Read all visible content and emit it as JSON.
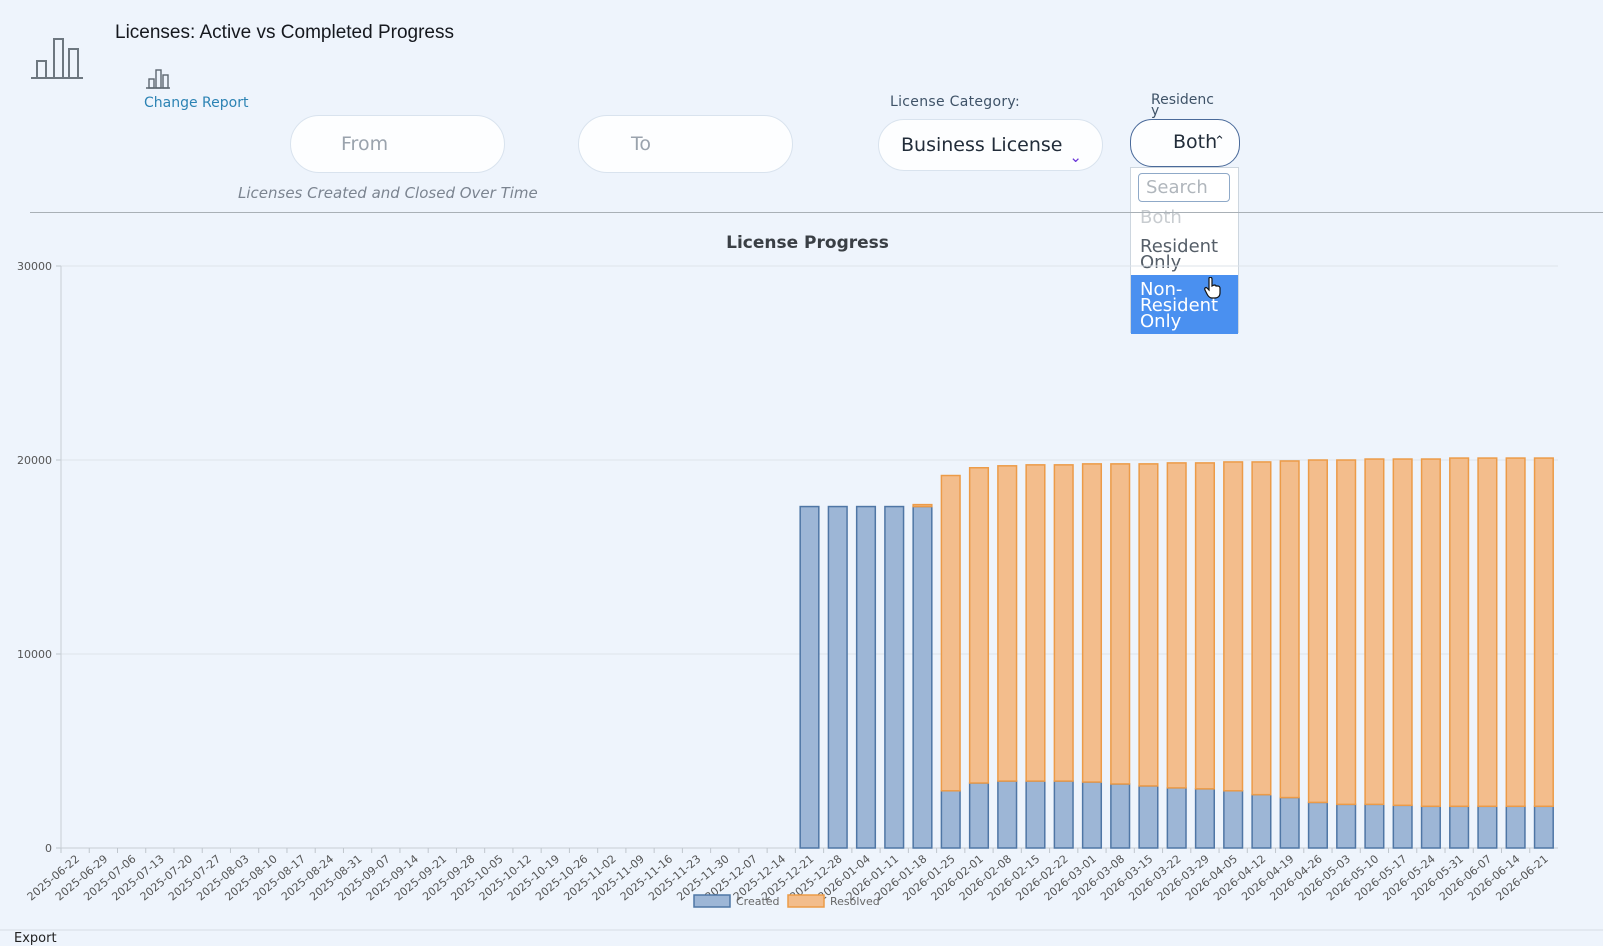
{
  "header": {
    "title": "Licenses: Active vs Completed Progress",
    "change_report": "Change Report",
    "icons": [
      "bar-chart-icon",
      "small-bar-chart-icon"
    ]
  },
  "filters": {
    "from_placeholder": "From",
    "to_placeholder": "To",
    "category_label": "License Category:",
    "category_value": "Business License",
    "residency_label": "Residency",
    "residency_value": "Both",
    "residency_search_placeholder": "Search",
    "residency_options": [
      "Both",
      "Resident Only",
      "Non-Resident Only"
    ],
    "residency_highlighted": "Non-Resident Only"
  },
  "subtitle": "Licenses Created and Closed Over Time",
  "footer": {
    "export_label": "Export"
  },
  "colors": {
    "created_fill": "#9db6d6",
    "created_stroke": "#4f76a5",
    "resolved_fill": "#f3bd8c",
    "resolved_stroke": "#ec9b48",
    "accent": "#4a90f0"
  },
  "chart_data": {
    "type": "bar",
    "stacked": true,
    "title": "License Progress",
    "ylim": [
      0,
      30000
    ],
    "yticks": [
      "0",
      "10000",
      "20000",
      "30000"
    ],
    "categories": [
      "2025-06-22",
      "2025-06-29",
      "2025-07-06",
      "2025-07-13",
      "2025-07-20",
      "2025-07-27",
      "2025-08-03",
      "2025-08-10",
      "2025-08-17",
      "2025-08-24",
      "2025-08-31",
      "2025-09-07",
      "2025-09-14",
      "2025-09-21",
      "2025-09-28",
      "2025-10-05",
      "2025-10-12",
      "2025-10-19",
      "2025-10-26",
      "2025-11-02",
      "2025-11-09",
      "2025-11-16",
      "2025-11-23",
      "2025-11-30",
      "2025-12-07",
      "2025-12-14",
      "2025-12-21",
      "2025-12-28",
      "2026-01-04",
      "2026-01-11",
      "2026-01-18",
      "2026-01-25",
      "2026-02-01",
      "2026-02-08",
      "2026-02-15",
      "2026-02-22",
      "2026-03-01",
      "2026-03-08",
      "2026-03-15",
      "2026-03-22",
      "2026-03-29",
      "2026-04-05",
      "2026-04-12",
      "2026-04-19",
      "2026-04-26",
      "2026-05-03",
      "2026-05-10",
      "2026-05-17",
      "2026-05-24",
      "2026-05-31",
      "2026-06-07",
      "2026-06-14",
      "2026-06-21"
    ],
    "series": [
      {
        "name": "Created",
        "values": [
          0,
          0,
          0,
          0,
          0,
          0,
          0,
          0,
          0,
          0,
          0,
          0,
          0,
          0,
          0,
          0,
          0,
          0,
          0,
          0,
          0,
          0,
          0,
          0,
          0,
          0,
          17600,
          17600,
          17600,
          17600,
          17600,
          2950,
          3350,
          3450,
          3450,
          3450,
          3400,
          3300,
          3200,
          3100,
          3050,
          2950,
          2750,
          2600,
          2350,
          2250,
          2250,
          2200,
          2150,
          2150,
          2150,
          2150,
          2150
        ]
      },
      {
        "name": "Resolved",
        "values": [
          0,
          0,
          0,
          0,
          0,
          0,
          0,
          0,
          0,
          0,
          0,
          0,
          0,
          0,
          0,
          0,
          0,
          0,
          0,
          0,
          0,
          0,
          0,
          0,
          0,
          0,
          0,
          0,
          0,
          0,
          100,
          16250,
          16250,
          16250,
          16300,
          16300,
          16400,
          16500,
          16600,
          16750,
          16800,
          16950,
          17150,
          17350,
          17650,
          17750,
          17800,
          17850,
          17900,
          17950,
          17950,
          17950,
          17950
        ]
      }
    ],
    "legend": "bottom"
  }
}
